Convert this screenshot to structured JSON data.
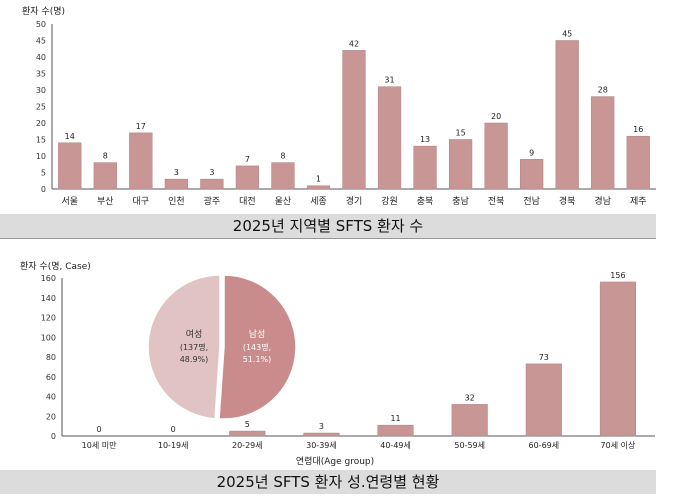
{
  "colors": {
    "bar": "#c99696",
    "bar_stroke": "#b07f7f",
    "pie_female": "#e2c3c3",
    "pie_male": "#c98b8b",
    "axis": "#555555"
  },
  "chart_data": [
    {
      "type": "bar",
      "title": "2025년 지역별 SFTS 환자 수",
      "ylabel": "환자 수(명)",
      "ylim": [
        0,
        50
      ],
      "yticks": [
        0,
        5,
        10,
        15,
        20,
        25,
        30,
        35,
        40,
        45,
        50
      ],
      "categories": [
        "서울",
        "부산",
        "대구",
        "인천",
        "광주",
        "대전",
        "울산",
        "세종",
        "경기",
        "강원",
        "충북",
        "충남",
        "전북",
        "전남",
        "경북",
        "경남",
        "제주"
      ],
      "values": [
        14,
        8,
        17,
        3,
        3,
        7,
        8,
        1,
        42,
        31,
        13,
        15,
        20,
        9,
        45,
        28,
        16
      ]
    },
    {
      "type": "bar",
      "title": "2025년 SFTS 환자 성.연령별 현황",
      "ylabel": "환자 수(명, Case)",
      "xlabel": "연령대(Age group)",
      "ylim": [
        0,
        160
      ],
      "yticks": [
        0,
        20,
        40,
        60,
        80,
        100,
        120,
        140,
        160
      ],
      "categories": [
        "10세 미만",
        "10-19세",
        "20-29세",
        "30-39세",
        "40-49세",
        "50-59세",
        "60-69세",
        "70세 이상"
      ],
      "values": [
        0,
        0,
        5,
        3,
        11,
        32,
        73,
        156
      ],
      "inset_pie": {
        "type": "pie",
        "slices": [
          {
            "name": "여성",
            "count_label": "(137명,",
            "pct_label": "48.9%)",
            "value": 48.9
          },
          {
            "name": "남성",
            "count_label": "(143명,",
            "pct_label": "51.1%)",
            "value": 51.1
          }
        ]
      }
    }
  ]
}
